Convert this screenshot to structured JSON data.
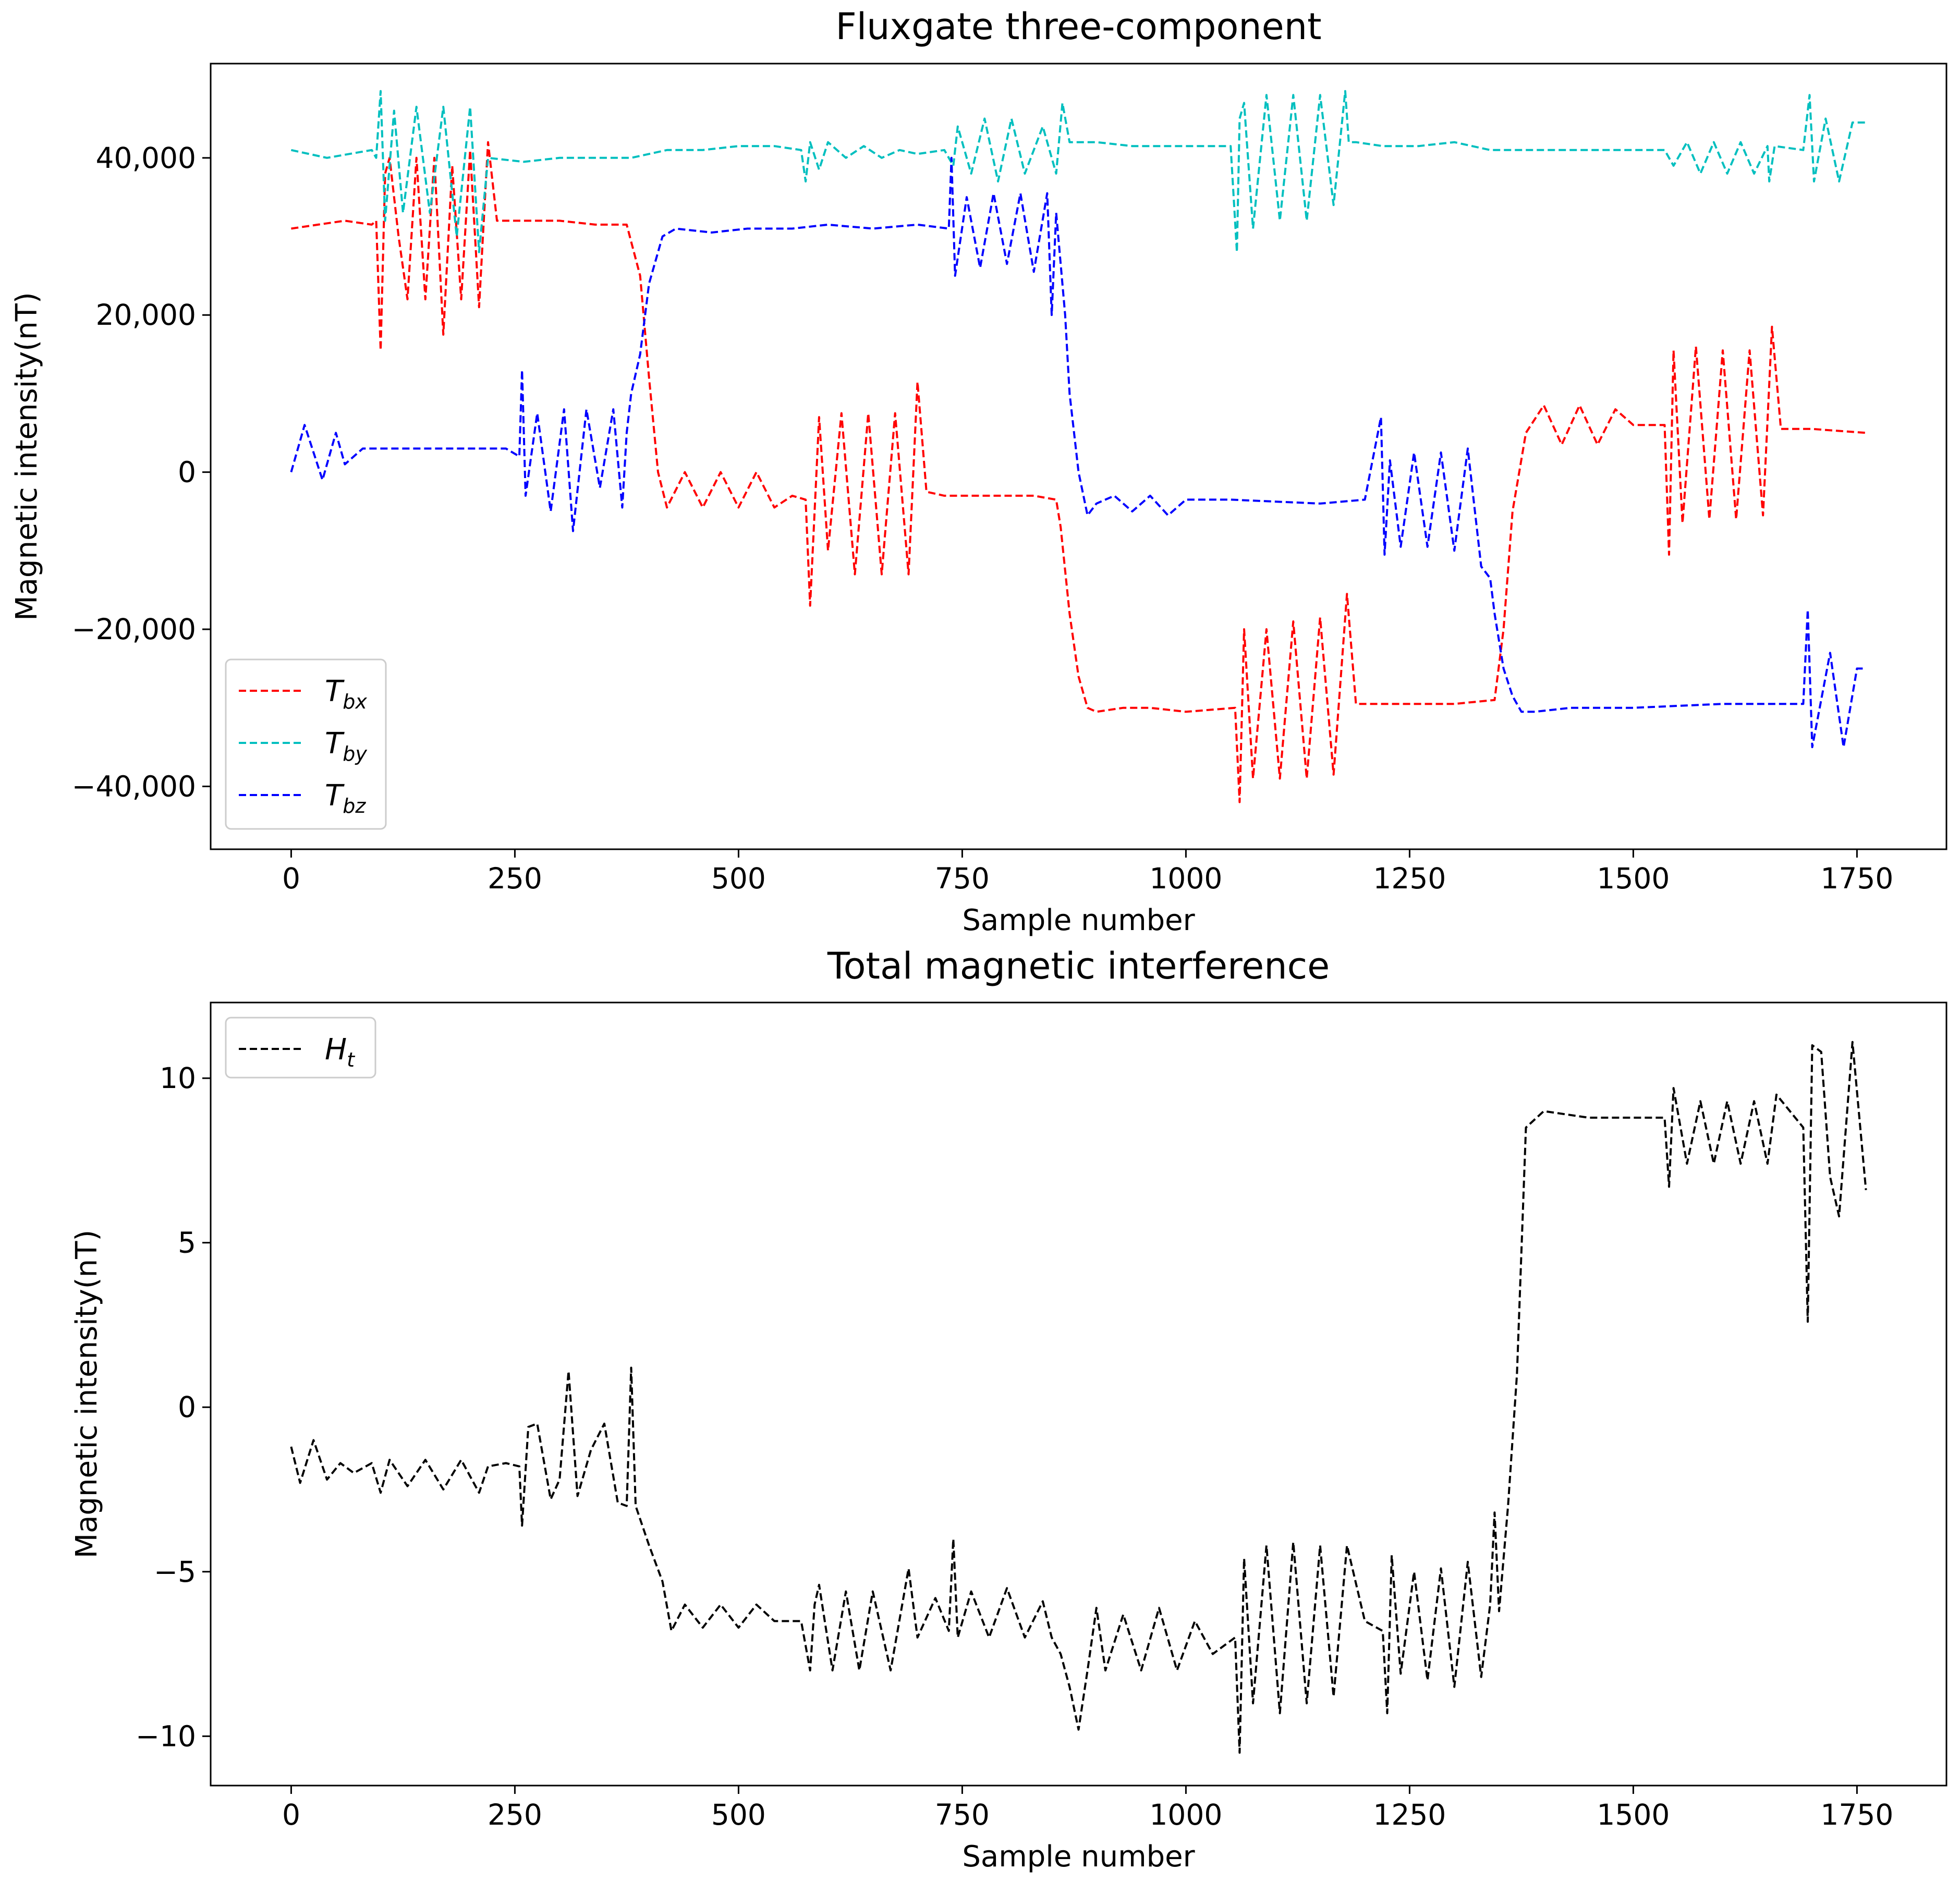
{
  "chart_data": [
    {
      "type": "line",
      "title": "Fluxgate three-component",
      "xlabel": "Sample number",
      "ylabel": "Magnetic intensity(nT)",
      "xlim": [
        -90,
        1850
      ],
      "ylim": [
        -48000,
        52000
      ],
      "xticks": [
        0,
        250,
        500,
        750,
        1000,
        1250,
        1500,
        1750
      ],
      "xtick_labels": [
        "0",
        "250",
        "500",
        "750",
        "1000",
        "1250",
        "1500",
        "1750"
      ],
      "yticks": [
        -40000,
        -20000,
        0,
        20000,
        40000
      ],
      "ytick_labels": [
        "−40,000",
        "−20,000",
        "0",
        "20,000",
        "40,000"
      ],
      "grid": false,
      "legend_position": "bottom-left",
      "series": [
        {
          "name": "Tbx",
          "label_main": "T",
          "label_sub": "bx",
          "color": "#ff0000",
          "x": [
            0,
            30,
            60,
            90,
            95,
            100,
            105,
            110,
            120,
            130,
            140,
            150,
            160,
            170,
            180,
            190,
            200,
            210,
            220,
            230,
            260,
            300,
            340,
            375,
            390,
            400,
            410,
            420,
            440,
            460,
            480,
            500,
            520,
            540,
            560,
            575,
            580,
            590,
            600,
            615,
            630,
            645,
            660,
            675,
            690,
            700,
            710,
            730,
            760,
            800,
            830,
            855,
            860,
            870,
            880,
            890,
            900,
            930,
            960,
            1000,
            1055,
            1060,
            1065,
            1075,
            1090,
            1105,
            1120,
            1135,
            1150,
            1165,
            1180,
            1190,
            1220,
            1260,
            1300,
            1345,
            1355,
            1365,
            1380,
            1400,
            1420,
            1440,
            1460,
            1480,
            1500,
            1535,
            1540,
            1545,
            1555,
            1570,
            1585,
            1600,
            1615,
            1630,
            1645,
            1655,
            1665,
            1700,
            1760
          ],
          "y": [
            31000,
            31500,
            32000,
            31500,
            32000,
            15500,
            38000,
            40000,
            30000,
            22000,
            40000,
            22000,
            40000,
            17500,
            39000,
            22000,
            41000,
            21000,
            42000,
            32000,
            32000,
            32000,
            31500,
            31500,
            25000,
            12000,
            0,
            -4500,
            0,
            -4500,
            0,
            -4500,
            0,
            -4500,
            -3000,
            -3500,
            -17000,
            7000,
            -10000,
            7500,
            -13000,
            7500,
            -13000,
            7500,
            -13000,
            11500,
            -2500,
            -3000,
            -3000,
            -3000,
            -3000,
            -3500,
            -7000,
            -18000,
            -26000,
            -30000,
            -30500,
            -30000,
            -30000,
            -30500,
            -30000,
            -42000,
            -20000,
            -39000,
            -20000,
            -39000,
            -19000,
            -39000,
            -18500,
            -38500,
            -15500,
            -29500,
            -29500,
            -29500,
            -29500,
            -29000,
            -20000,
            -5000,
            5000,
            8500,
            3500,
            8500,
            3500,
            8000,
            6000,
            6000,
            -10500,
            15500,
            -6500,
            16000,
            -6000,
            15500,
            -6000,
            15500,
            -5500,
            18500,
            5500,
            5500,
            5000
          ]
        },
        {
          "name": "Tby",
          "label_main": "T",
          "label_sub": "by",
          "color": "#00bfbf",
          "x": [
            0,
            40,
            90,
            95,
            100,
            105,
            115,
            125,
            140,
            155,
            170,
            185,
            200,
            210,
            220,
            260,
            300,
            340,
            380,
            420,
            460,
            500,
            540,
            570,
            575,
            580,
            590,
            600,
            620,
            640,
            660,
            680,
            700,
            730,
            740,
            745,
            760,
            775,
            790,
            805,
            820,
            840,
            855,
            862,
            870,
            900,
            940,
            980,
            1000,
            1050,
            1057,
            1060,
            1065,
            1075,
            1090,
            1105,
            1120,
            1135,
            1150,
            1165,
            1178,
            1182,
            1190,
            1220,
            1260,
            1300,
            1340,
            1380,
            1420,
            1460,
            1500,
            1535,
            1545,
            1560,
            1575,
            1590,
            1605,
            1620,
            1635,
            1650,
            1652,
            1658,
            1690,
            1697,
            1702,
            1715,
            1730,
            1745,
            1760
          ],
          "y": [
            41000,
            40000,
            41000,
            40000,
            48500,
            32000,
            46000,
            33000,
            46500,
            33000,
            46500,
            30000,
            46500,
            28000,
            40000,
            39500,
            40000,
            40000,
            40000,
            41000,
            41000,
            41500,
            41500,
            41000,
            37000,
            42000,
            38500,
            42000,
            40000,
            41500,
            40000,
            41000,
            40500,
            41000,
            39000,
            44000,
            38000,
            45000,
            37000,
            45000,
            38000,
            44000,
            38000,
            47000,
            42000,
            42000,
            41500,
            41500,
            41500,
            41500,
            28000,
            45000,
            47000,
            31000,
            48000,
            32000,
            48000,
            32000,
            48000,
            34000,
            48500,
            42000,
            42000,
            41500,
            41500,
            42000,
            41000,
            41000,
            41000,
            41000,
            41000,
            41000,
            39000,
            42000,
            38000,
            42000,
            38000,
            42000,
            38000,
            41500,
            37000,
            41500,
            41000,
            48000,
            37000,
            45000,
            37000,
            44500,
            44500
          ]
        },
        {
          "name": "Tbz",
          "label_main": "T",
          "label_sub": "bz",
          "color": "#0000ff",
          "x": [
            0,
            15,
            35,
            50,
            60,
            80,
            120,
            180,
            240,
            255,
            258,
            262,
            275,
            290,
            305,
            315,
            330,
            345,
            360,
            370,
            375,
            380,
            390,
            400,
            415,
            430,
            470,
            510,
            560,
            600,
            650,
            700,
            735,
            738,
            742,
            755,
            770,
            785,
            800,
            815,
            830,
            845,
            850,
            855,
            865,
            870,
            880,
            890,
            900,
            920,
            940,
            960,
            980,
            1000,
            1050,
            1150,
            1200,
            1218,
            1222,
            1228,
            1240,
            1255,
            1270,
            1285,
            1300,
            1315,
            1330,
            1340,
            1345,
            1355,
            1365,
            1375,
            1390,
            1430,
            1500,
            1600,
            1690,
            1695,
            1700,
            1720,
            1735,
            1750,
            1760
          ],
          "y": [
            0,
            6000,
            -1000,
            5000,
            1000,
            3000,
            3000,
            3000,
            3000,
            2000,
            13000,
            -3000,
            7500,
            -5000,
            8000,
            -7500,
            8000,
            -2000,
            8000,
            -4500,
            5000,
            10000,
            15000,
            24000,
            30000,
            31000,
            30500,
            31000,
            31000,
            31500,
            31000,
            31500,
            31000,
            40000,
            25000,
            35000,
            26000,
            35500,
            26500,
            35500,
            25500,
            35500,
            20000,
            33000,
            20000,
            10000,
            0,
            -5500,
            -4000,
            -3000,
            -5000,
            -3000,
            -5500,
            -3500,
            -3500,
            -4000,
            -3500,
            7000,
            -10500,
            1500,
            -9500,
            2500,
            -9500,
            2500,
            -10000,
            3000,
            -12000,
            -13500,
            -18000,
            -25000,
            -28500,
            -30500,
            -30500,
            -30000,
            -30000,
            -29500,
            -29500,
            -17500,
            -35000,
            -23000,
            -35000,
            -25000,
            -25000
          ]
        }
      ]
    },
    {
      "type": "line",
      "title": "Total magnetic interference",
      "xlabel": "Sample number",
      "ylabel": "Magnetic intensity(nT)",
      "xlim": [
        -90,
        1850
      ],
      "ylim": [
        -11.5,
        12.3
      ],
      "xticks": [
        0,
        250,
        500,
        750,
        1000,
        1250,
        1500,
        1750
      ],
      "xtick_labels": [
        "0",
        "250",
        "500",
        "750",
        "1000",
        "1250",
        "1500",
        "1750"
      ],
      "yticks": [
        -10,
        -5,
        0,
        5,
        10
      ],
      "ytick_labels": [
        "−10",
        "−5",
        "0",
        "5",
        "10"
      ],
      "grid": false,
      "legend_position": "top-left",
      "series": [
        {
          "name": "Ht",
          "label_main": "H",
          "label_sub": "t",
          "color": "#000000",
          "x": [
            0,
            10,
            25,
            40,
            55,
            70,
            90,
            100,
            110,
            130,
            150,
            170,
            190,
            210,
            220,
            240,
            255,
            258,
            265,
            275,
            290,
            300,
            310,
            320,
            335,
            350,
            365,
            375,
            380,
            385,
            400,
            415,
            425,
            440,
            460,
            480,
            500,
            520,
            540,
            570,
            580,
            585,
            590,
            605,
            620,
            635,
            650,
            670,
            690,
            700,
            720,
            735,
            740,
            745,
            760,
            780,
            800,
            820,
            840,
            850,
            860,
            870,
            880,
            890,
            900,
            910,
            930,
            950,
            970,
            990,
            1010,
            1030,
            1045,
            1055,
            1060,
            1065,
            1075,
            1090,
            1105,
            1120,
            1135,
            1150,
            1165,
            1180,
            1200,
            1220,
            1225,
            1230,
            1240,
            1255,
            1270,
            1285,
            1300,
            1315,
            1330,
            1340,
            1345,
            1350,
            1360,
            1370,
            1380,
            1400,
            1450,
            1500,
            1535,
            1540,
            1545,
            1560,
            1575,
            1590,
            1605,
            1620,
            1635,
            1650,
            1660,
            1690,
            1695,
            1700,
            1710,
            1720,
            1730,
            1745,
            1760
          ],
          "y": [
            -1.2,
            -2.3,
            -1.0,
            -2.2,
            -1.7,
            -2.0,
            -1.7,
            -2.6,
            -1.6,
            -2.4,
            -1.6,
            -2.5,
            -1.6,
            -2.6,
            -1.8,
            -1.7,
            -1.8,
            -3.6,
            -0.6,
            -0.5,
            -2.8,
            -2.2,
            1.1,
            -2.7,
            -1.3,
            -0.5,
            -2.9,
            -3.0,
            1.2,
            -3.0,
            -4.2,
            -5.3,
            -6.8,
            -6.0,
            -6.7,
            -6.0,
            -6.7,
            -6.0,
            -6.5,
            -6.5,
            -8.0,
            -6.0,
            -5.4,
            -8.0,
            -5.6,
            -8.0,
            -5.6,
            -8.0,
            -4.9,
            -7.0,
            -5.8,
            -6.8,
            -4.0,
            -7.0,
            -5.6,
            -7.0,
            -5.5,
            -7.0,
            -5.9,
            -7.0,
            -7.5,
            -8.5,
            -9.8,
            -8.0,
            -6.1,
            -8.0,
            -6.3,
            -8.0,
            -6.1,
            -8.0,
            -6.5,
            -7.5,
            -7.2,
            -7.0,
            -10.5,
            -4.6,
            -9.0,
            -4.2,
            -9.3,
            -4.1,
            -9.0,
            -4.2,
            -8.8,
            -4.2,
            -6.5,
            -6.8,
            -9.3,
            -4.5,
            -8.1,
            -5.0,
            -8.3,
            -4.9,
            -8.5,
            -4.7,
            -8.2,
            -6.0,
            -3.2,
            -6.2,
            -3.0,
            1.0,
            8.5,
            9.0,
            8.8,
            8.8,
            8.8,
            6.7,
            9.7,
            7.4,
            9.3,
            7.4,
            9.3,
            7.4,
            9.3,
            7.4,
            9.5,
            8.5,
            2.6,
            11.0,
            10.8,
            7.0,
            5.8,
            11.1,
            6.6
          ]
        }
      ]
    }
  ]
}
